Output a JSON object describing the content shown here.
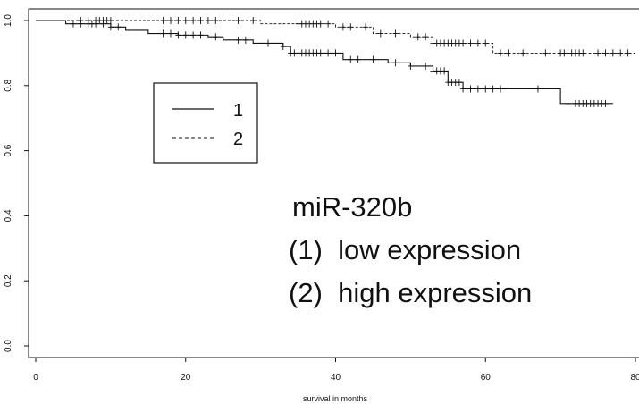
{
  "chart_data": {
    "type": "line",
    "subtype": "kaplan-meier",
    "title": "",
    "xlabel": "survival in months",
    "ylabel": "",
    "xlim": [
      0,
      80
    ],
    "ylim": [
      0,
      1.0
    ],
    "xticks": [
      0,
      20,
      40,
      60,
      80
    ],
    "xtick_labels": [
      "0",
      "20",
      "40",
      "60",
      "80"
    ],
    "yticks": [
      0.0,
      0.2,
      0.4,
      0.6,
      0.8,
      1.0
    ],
    "ytick_labels": [
      "0.0",
      "0.2",
      "0.4",
      "0.6",
      "0.8",
      "1.0"
    ],
    "grid": false,
    "legend": {
      "placement": "upper-left",
      "entries": [
        {
          "label": "1",
          "style": "solid"
        },
        {
          "label": "2",
          "style": "dashed"
        }
      ]
    },
    "annotations": [
      "miR-320b",
      "(1)  low expression",
      "(2)  high expression"
    ],
    "series": [
      {
        "name": "1",
        "style": "solid",
        "steps": [
          [
            0,
            1.0
          ],
          [
            4,
            0.99
          ],
          [
            10,
            0.98
          ],
          [
            12,
            0.97
          ],
          [
            15,
            0.96
          ],
          [
            19,
            0.955
          ],
          [
            23,
            0.95
          ],
          [
            25,
            0.94
          ],
          [
            29,
            0.93
          ],
          [
            33,
            0.92
          ],
          [
            34,
            0.9
          ],
          [
            41,
            0.88
          ],
          [
            47,
            0.87
          ],
          [
            50,
            0.86
          ],
          [
            53,
            0.845
          ],
          [
            55,
            0.81
          ],
          [
            57,
            0.79
          ],
          [
            64,
            0.79
          ],
          [
            70,
            0.745
          ],
          [
            77,
            0.745
          ]
        ],
        "censor_times": [
          5,
          6,
          7,
          7.5,
          8,
          9,
          10,
          11,
          17,
          18,
          19,
          20,
          21,
          22,
          24,
          27,
          28,
          31,
          33,
          34,
          34.5,
          35,
          35.5,
          36,
          36.5,
          37,
          37.5,
          38,
          39,
          40,
          42,
          43,
          45,
          48,
          50,
          52,
          53,
          53.5,
          54,
          54.5,
          55,
          55.5,
          56,
          56.5,
          57,
          58,
          59,
          60,
          61,
          62,
          67,
          71,
          72,
          72.5,
          73,
          73.5,
          74,
          74.5,
          75,
          75.5,
          76
        ]
      },
      {
        "name": "2",
        "style": "dashed",
        "steps": [
          [
            0,
            1.0
          ],
          [
            30,
            0.99
          ],
          [
            40,
            0.98
          ],
          [
            45,
            0.96
          ],
          [
            50,
            0.95
          ],
          [
            53,
            0.93
          ],
          [
            61,
            0.9
          ],
          [
            80,
            0.9
          ]
        ],
        "censor_times": [
          6,
          7,
          8,
          8.5,
          9,
          9.5,
          10,
          17,
          18,
          19,
          20,
          21,
          22,
          23,
          24,
          27,
          29,
          35,
          35.5,
          36,
          36.5,
          37,
          37.5,
          38,
          39,
          41,
          42,
          44,
          46,
          48,
          51,
          52,
          53,
          53.5,
          54,
          54.5,
          55,
          55.5,
          56,
          56.5,
          57,
          58,
          59,
          60,
          62,
          63,
          65,
          68,
          70,
          70.5,
          71,
          71.5,
          72,
          72.5,
          73,
          75,
          76,
          77,
          78,
          79
        ]
      }
    ]
  }
}
